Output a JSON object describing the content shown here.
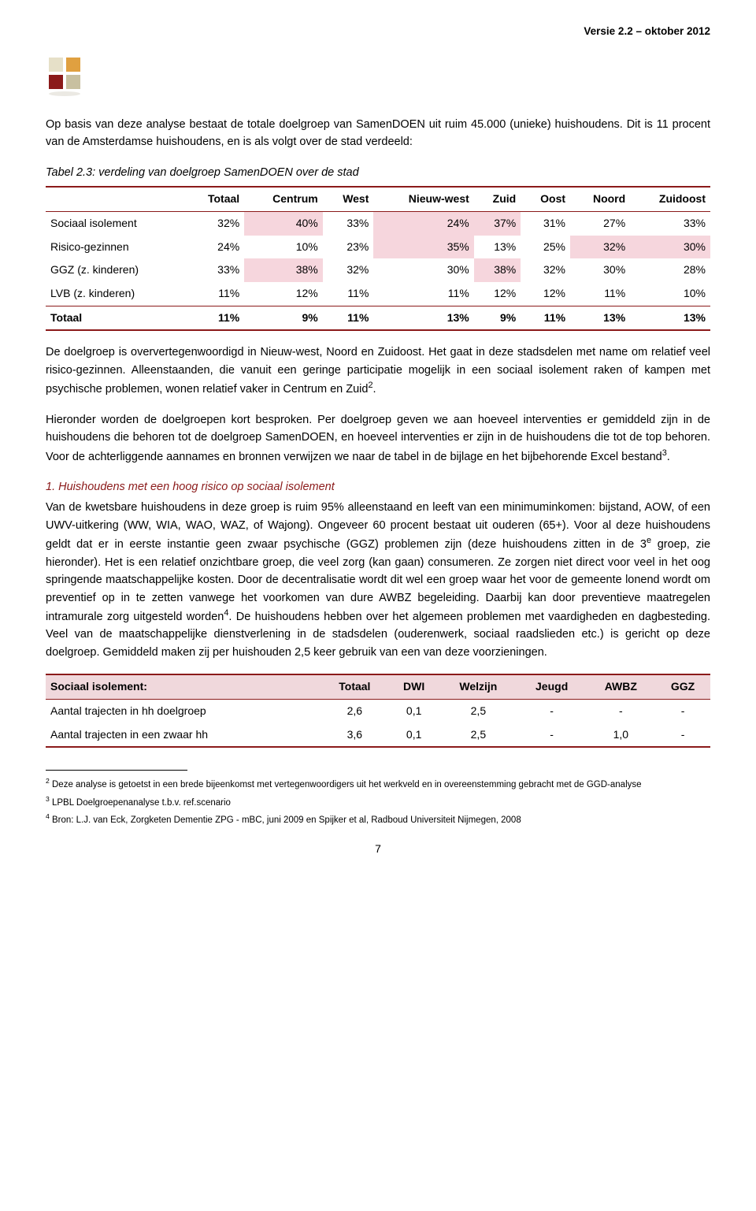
{
  "header": {
    "version": "Versie 2.2 – oktober 2012"
  },
  "logo": {
    "colors": [
      "#e6e0c8",
      "#e0a040",
      "#8b1a1a",
      "#c8c0a0"
    ]
  },
  "intro": {
    "p1": "Op basis van deze analyse bestaat de totale doelgroep van SamenDOEN uit ruim 45.000 (unieke) huishoudens. Dit is 11 procent van de Amsterdamse huishoudens, en is als volgt over de stad verdeeld:"
  },
  "table1": {
    "caption": "Tabel 2.3: verdeling van doelgroep SamenDOEN over de stad",
    "columns": [
      "",
      "Totaal",
      "Centrum",
      "West",
      "Nieuw-west",
      "Zuid",
      "Oost",
      "Noord",
      "Zuidoost"
    ],
    "rows": [
      {
        "label": "Sociaal isolement",
        "vals": [
          "32%",
          "40%",
          "33%",
          "24%",
          "37%",
          "31%",
          "27%",
          "33%"
        ],
        "hl": [
          1,
          3,
          4
        ]
      },
      {
        "label": "Risico-gezinnen",
        "vals": [
          "24%",
          "10%",
          "23%",
          "35%",
          "13%",
          "25%",
          "32%",
          "30%"
        ],
        "hl": [
          3,
          6,
          7
        ]
      },
      {
        "label": "GGZ (z. kinderen)",
        "vals": [
          "33%",
          "38%",
          "32%",
          "30%",
          "38%",
          "32%",
          "30%",
          "28%"
        ],
        "hl": [
          1,
          4
        ]
      },
      {
        "label": "LVB (z. kinderen)",
        "vals": [
          "11%",
          "12%",
          "11%",
          "11%",
          "12%",
          "12%",
          "11%",
          "10%"
        ],
        "hl": []
      }
    ],
    "total": {
      "label": "Totaal",
      "vals": [
        "11%",
        "9%",
        "11%",
        "13%",
        "9%",
        "11%",
        "13%",
        "13%"
      ]
    }
  },
  "body": {
    "p2": "De doelgroep is oververtegenwoordigd in Nieuw-west, Noord en Zuidoost. Het gaat in deze stadsdelen met name om relatief veel risico-gezinnen. Alleenstaanden, die vanuit een geringe participatie mogelijk in een sociaal isolement raken of kampen met psychische problemen, wonen relatief vaker in Centrum en Zuid",
    "p2_sup": "2",
    "p2_tail": ".",
    "p3": "Hieronder worden de doelgroepen kort besproken. Per doelgroep geven we aan hoeveel interventies er gemiddeld zijn in de huishoudens die behoren tot de doelgroep SamenDOEN, en hoeveel interventies er zijn in de huishoudens die tot de top behoren. Voor de achterliggende aannames en bronnen verwijzen we naar de tabel in de bijlage en het bijbehorende Excel bestand",
    "p3_sup": "3",
    "p3_tail": ".",
    "section1_title": "1. Huishoudens met een hoog risico op sociaal isolement",
    "p4a": "Van de kwetsbare huishoudens in deze groep is ruim 95% alleenstaand en leeft van een minimuminkomen: bijstand, AOW, of een UWV-uitkering (WW, WIA, WAO, WAZ, of Wajong). Ongeveer 60 procent bestaat uit ouderen (65+). Voor al deze huishoudens geldt dat er in eerste instantie geen zwaar psychische (GGZ) problemen zijn (deze huishoudens zitten in de 3",
    "p4a_sup": "e",
    "p4b": " groep, zie hieronder). Het is een relatief onzichtbare groep, die veel zorg (kan gaan) consumeren. Ze zorgen niet direct voor veel in het oog springende maatschappelijke kosten. Door de decentralisatie wordt dit wel een groep waar het voor de gemeente lonend wordt om preventief op in te zetten vanwege het voorkomen van dure AWBZ begeleiding. Daarbij kan door preventieve maatregelen intramurale zorg uitgesteld worden",
    "p4b_sup": "4",
    "p4c": ". De huishoudens hebben over het algemeen problemen met vaardigheden en dagbesteding. Veel van de maatschappelijke dienstverlening in de stadsdelen (ouderenwerk, sociaal raadslieden etc.) is gericht op deze doelgroep. Gemiddeld maken zij per huishouden 2,5 keer gebruik van een van deze voorzieningen."
  },
  "table2": {
    "columns": [
      "Sociaal isolement:",
      "Totaal",
      "DWI",
      "Welzijn",
      "Jeugd",
      "AWBZ",
      "GGZ"
    ],
    "rows": [
      {
        "label": "Aantal trajecten in hh doelgroep",
        "vals": [
          "2,6",
          "0,1",
          "2,5",
          "-",
          "-",
          "-"
        ]
      },
      {
        "label": "Aantal trajecten in een zwaar hh",
        "vals": [
          "3,6",
          "0,1",
          "2,5",
          "-",
          "1,0",
          "-"
        ]
      }
    ]
  },
  "footnotes": {
    "f2_sup": "2",
    "f2": " Deze analyse is getoetst in een brede bijeenkomst met vertegenwoordigers uit het werkveld en in overeenstemming gebracht met de GGD-analyse",
    "f3_sup": "3",
    "f3": " LPBL Doelgroepenanalyse t.b.v. ref.scenario",
    "f4_sup": "4",
    "f4": " Bron:  L.J. van Eck, Zorgketen Dementie ZPG - mBC, juni 2009 en Spijker et al, Radboud Universiteit Nijmegen, 2008"
  },
  "page_number": "7",
  "colors": {
    "accent": "#8b1a1a",
    "highlight": "rgba(235,165,180,0.45)",
    "header_row_bg": "#f0d8dc",
    "text": "#000000",
    "background": "#ffffff"
  }
}
